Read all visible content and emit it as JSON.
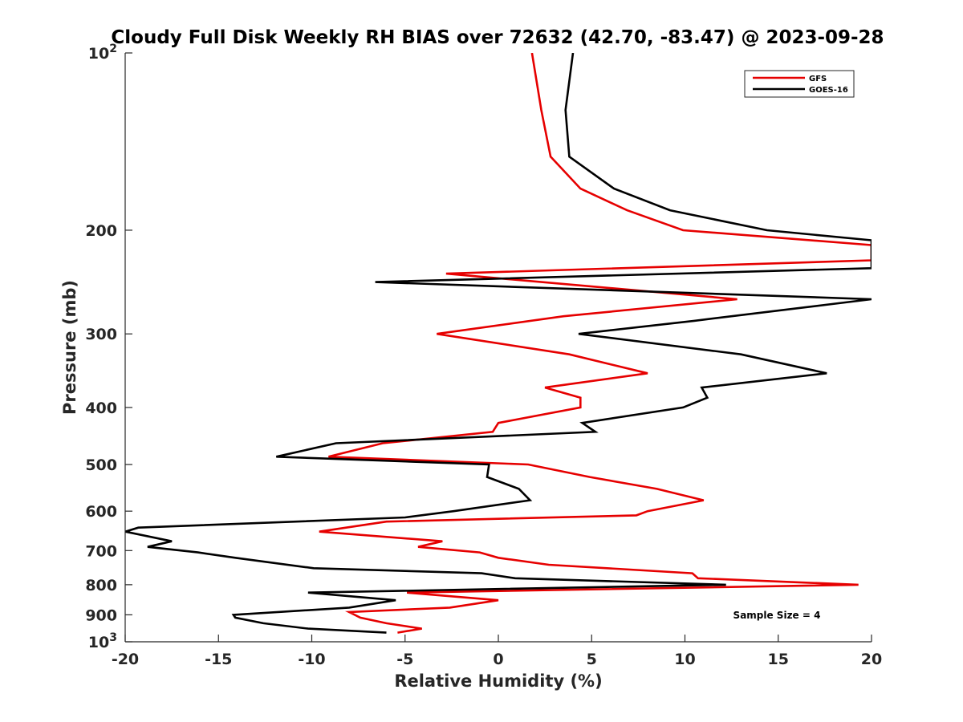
{
  "chart_data": {
    "type": "line",
    "title": "Cloudy Full Disk Weekly RH BIAS over 72632 (42.70, -83.47) @ 2023-09-28",
    "xlabel": "Relative Humidity (%)",
    "ylabel": "Pressure (mb)",
    "xlim": [
      -20,
      20
    ],
    "ylim": [
      100,
      1000
    ],
    "y_scale": "log",
    "y_reversed": true,
    "grid": false,
    "legend_position": "top-right",
    "x_ticks": [
      -20,
      -15,
      -10,
      -5,
      0,
      5,
      10,
      15,
      20
    ],
    "x_tick_labels": [
      "-20",
      "-15",
      "-10",
      "-5",
      "0",
      "5",
      "10",
      "15",
      "20"
    ],
    "y_ticks": [
      100,
      200,
      300,
      400,
      500,
      600,
      700,
      800,
      900,
      1000
    ],
    "y_tick_labels": [
      {
        "base": "10",
        "exp": "2"
      },
      {
        "base": "200",
        "exp": ""
      },
      {
        "base": "300",
        "exp": ""
      },
      {
        "base": "400",
        "exp": ""
      },
      {
        "base": "500",
        "exp": ""
      },
      {
        "base": "600",
        "exp": ""
      },
      {
        "base": "700",
        "exp": ""
      },
      {
        "base": "800",
        "exp": ""
      },
      {
        "base": "900",
        "exp": ""
      },
      {
        "base": "10",
        "exp": "3"
      }
    ],
    "annotation": "Sample Size = 4",
    "series": [
      {
        "name": "GFS",
        "color": "#e60000",
        "points": [
          [
            1.8,
            100
          ],
          [
            2.3,
            125
          ],
          [
            2.8,
            150
          ],
          [
            4.4,
            170
          ],
          [
            6.9,
            185
          ],
          [
            9.9,
            200
          ],
          [
            20,
            212
          ],
          [
            20,
            225
          ],
          [
            -2.8,
            237
          ],
          [
            12.8,
            262
          ],
          [
            3.5,
            280
          ],
          [
            -3.3,
            300
          ],
          [
            3.8,
            325
          ],
          [
            8,
            350
          ],
          [
            2.5,
            370
          ],
          [
            4.4,
            385
          ],
          [
            4.4,
            400
          ],
          [
            0,
            425
          ],
          [
            -0.3,
            440
          ],
          [
            -6.2,
            460
          ],
          [
            -9.1,
            485
          ],
          [
            1.6,
            500
          ],
          [
            4.9,
            525
          ],
          [
            8.5,
            550
          ],
          [
            11,
            575
          ],
          [
            8,
            600
          ],
          [
            7.4,
            610
          ],
          [
            -6,
            625
          ],
          [
            -9.6,
            650
          ],
          [
            -3,
            675
          ],
          [
            -4.3,
            690
          ],
          [
            -1,
            705
          ],
          [
            0,
            720
          ],
          [
            2.7,
            740
          ],
          [
            10.4,
            765
          ],
          [
            10.7,
            780
          ],
          [
            19.3,
            800
          ],
          [
            -4.9,
            825
          ],
          [
            0,
            850
          ],
          [
            -2.6,
            875
          ],
          [
            -8,
            890
          ],
          [
            -7.4,
            910
          ],
          [
            -6,
            930
          ],
          [
            -4.1,
            950
          ],
          [
            -5.4,
            965
          ]
        ]
      },
      {
        "name": "GOES-16",
        "color": "#000000",
        "points": [
          [
            4,
            100
          ],
          [
            3.6,
            125
          ],
          [
            3.8,
            150
          ],
          [
            6.2,
            170
          ],
          [
            9.2,
            185
          ],
          [
            14.4,
            200
          ],
          [
            20,
            208
          ],
          [
            20,
            232
          ],
          [
            -6.6,
            245
          ],
          [
            20,
            262
          ],
          [
            10.5,
            285
          ],
          [
            4.3,
            300
          ],
          [
            13,
            325
          ],
          [
            17.6,
            350
          ],
          [
            10.9,
            370
          ],
          [
            11.2,
            385
          ],
          [
            9.9,
            400
          ],
          [
            4.5,
            425
          ],
          [
            5.2,
            440
          ],
          [
            -8.7,
            460
          ],
          [
            -11.9,
            485
          ],
          [
            -0.5,
            500
          ],
          [
            -0.6,
            525
          ],
          [
            1.1,
            550
          ],
          [
            1.7,
            575
          ],
          [
            -2.4,
            600
          ],
          [
            -5,
            615
          ],
          [
            -19.3,
            640
          ],
          [
            -20,
            650
          ],
          [
            -17.5,
            675
          ],
          [
            -18.8,
            690
          ],
          [
            -16.1,
            705
          ],
          [
            -14.1,
            720
          ],
          [
            -9.9,
            750
          ],
          [
            -0.9,
            765
          ],
          [
            0.9,
            780
          ],
          [
            12.2,
            800
          ],
          [
            -10.2,
            825
          ],
          [
            -5.5,
            850
          ],
          [
            -8,
            875
          ],
          [
            -14.2,
            900
          ],
          [
            -14.1,
            910
          ],
          [
            -12.6,
            930
          ],
          [
            -10.2,
            950
          ],
          [
            -6,
            965
          ]
        ]
      }
    ]
  }
}
